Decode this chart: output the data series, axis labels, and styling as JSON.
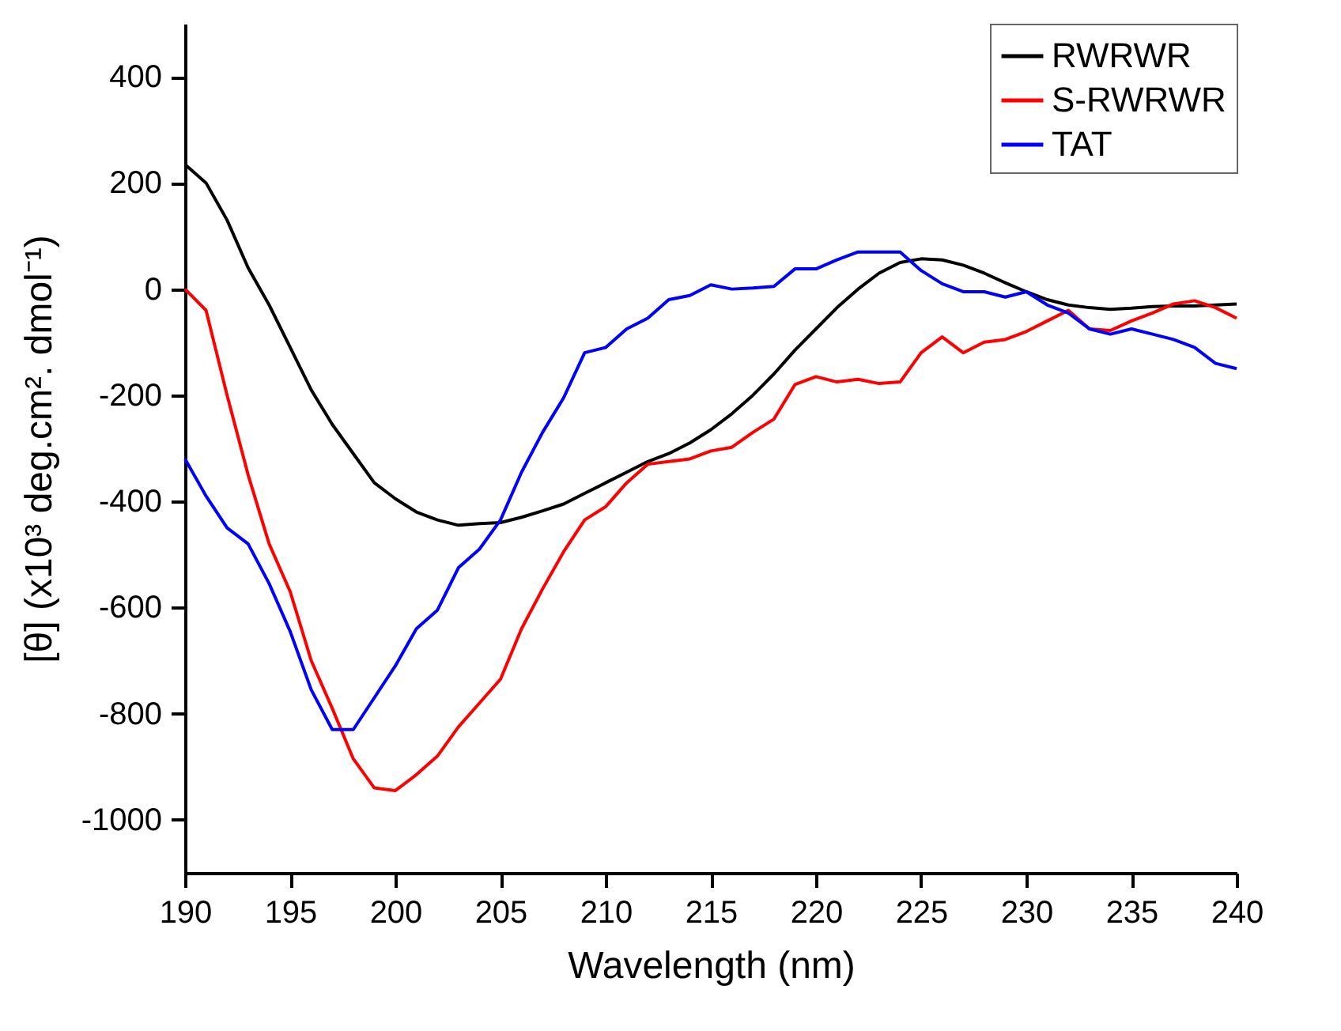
{
  "chart_data": {
    "type": "line",
    "xlabel": "Wavelength (nm)",
    "ylabel": "[θ] (x10³ deg.cm². dmol⁻¹)",
    "x": [
      190,
      191,
      192,
      193,
      194,
      195,
      196,
      197,
      198,
      199,
      200,
      201,
      202,
      203,
      204,
      205,
      206,
      207,
      208,
      209,
      210,
      211,
      212,
      213,
      214,
      215,
      216,
      217,
      218,
      219,
      220,
      221,
      222,
      223,
      224,
      225,
      226,
      227,
      228,
      229,
      230,
      231,
      232,
      233,
      234,
      235,
      236,
      237,
      238,
      239,
      240
    ],
    "series": [
      {
        "name": "RWRWR",
        "color": "#000000",
        "values": [
          235,
          200,
          130,
          40,
          -30,
          -110,
          -190,
          -255,
          -310,
          -365,
          -395,
          -420,
          -435,
          -445,
          -442,
          -440,
          -430,
          -418,
          -405,
          -385,
          -365,
          -345,
          -325,
          -310,
          -290,
          -265,
          -235,
          -200,
          -160,
          -115,
          -75,
          -35,
          0,
          30,
          50,
          57,
          55,
          45,
          30,
          12,
          -5,
          -20,
          -30,
          -35,
          -38,
          -36,
          -33,
          -32,
          -32,
          -30,
          -28
        ]
      },
      {
        "name": "S-RWRWR",
        "color": "#ff0000",
        "values": [
          0,
          -40,
          -200,
          -350,
          -480,
          -570,
          -700,
          -790,
          -885,
          -940,
          -945,
          -915,
          -880,
          -825,
          -780,
          -735,
          -640,
          -565,
          -495,
          -435,
          -410,
          -365,
          -330,
          -325,
          -320,
          -305,
          -298,
          -270,
          -245,
          -180,
          -165,
          -175,
          -170,
          -178,
          -175,
          -120,
          -90,
          -120,
          -100,
          -95,
          -80,
          -60,
          -40,
          -75,
          -78,
          -60,
          -45,
          -28,
          -22,
          -35,
          -55
        ]
      },
      {
        "name": "TAT",
        "color": "#0000ff",
        "values": [
          -320,
          -390,
          -450,
          -480,
          -555,
          -645,
          -755,
          -830,
          -830,
          -770,
          -710,
          -640,
          -605,
          -525,
          -490,
          -435,
          -345,
          -270,
          -205,
          -120,
          -110,
          -75,
          -55,
          -20,
          -12,
          8,
          0,
          2,
          5,
          38,
          38,
          55,
          70,
          70,
          70,
          35,
          10,
          -5,
          -5,
          -15,
          -5,
          -30,
          -45,
          -75,
          -85,
          -75,
          -85,
          -95,
          -110,
          -140,
          -150
        ]
      }
    ],
    "xlim": [
      190,
      240
    ],
    "xticks": [
      190,
      195,
      200,
      205,
      210,
      215,
      220,
      225,
      230,
      235,
      240
    ],
    "ylim": [
      -1100,
      500
    ],
    "yticks": [
      -1000,
      -800,
      -600,
      -400,
      -200,
      0,
      200,
      400
    ],
    "legend": "top right",
    "grid": false,
    "marker": "none",
    "line_style": "solid"
  }
}
